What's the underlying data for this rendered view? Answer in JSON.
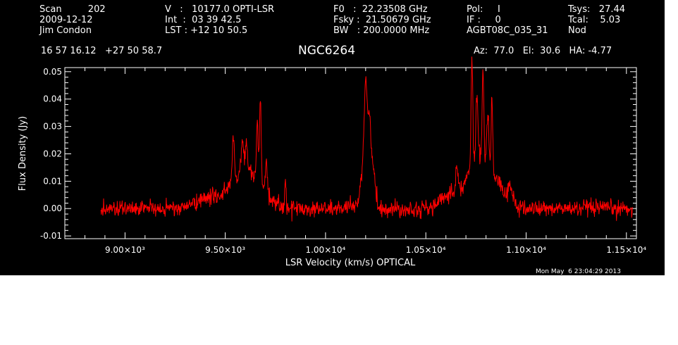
{
  "header": {
    "col1": [
      "Scan         202",
      "2009-12-12",
      "Jim Condon"
    ],
    "col2": [
      "V   :   10177.0 OPTI-LSR",
      "Int  :  03 39 42.5",
      "LST : +12 10 50.5"
    ],
    "col3": [
      "F0   :  22.23508 GHz",
      "Fsky :  21.50679 GHz",
      "BW   : 200.0000 MHz"
    ],
    "col4": [
      "Pol:     I",
      "IF :     0",
      "AGBT08C_035_31"
    ],
    "col5": [
      "Tsys:   27.44",
      "Tcal:    5.03",
      "Nod"
    ],
    "coords": "16 57 16.12   +27 50 58.7",
    "azel": "Az:  77.0   El:  30.6   HA: -4.77"
  },
  "timestamp": "Mon May  6 23:04:29 2013",
  "colors": {
    "background": "#000000",
    "axes": "#ffffff",
    "trace": "#ff0000"
  },
  "chart_data": {
    "type": "line",
    "title": "NGC6264",
    "xlabel": "LSR Velocity (km/s) OPTICAL",
    "ylabel": "Flux Density (Jy)",
    "xlim": [
      8700,
      11550
    ],
    "ylim": [
      -0.011,
      0.0515
    ],
    "x_ticks": [
      9000,
      9500,
      10000,
      10500,
      11000,
      11500
    ],
    "x_tick_labels": [
      "9.00×10³",
      "9.50×10³",
      "1.00×10⁴",
      "1.05×10⁴",
      "1.10×10⁴",
      "1.15×10⁴"
    ],
    "y_ticks": [
      -0.01,
      0.0,
      0.01,
      0.02,
      0.03,
      0.04,
      0.05
    ],
    "y_tick_labels": [
      "-0.01",
      "0.00",
      "0.01",
      "0.02",
      "0.03",
      "0.04",
      "0.05"
    ],
    "grid": false,
    "series": [
      {
        "x_range": [
          8880,
          11530
        ],
        "baseline": 0.0,
        "noise_rms": 0.0015,
        "features": [
          {
            "x": 9420,
            "peak": 0.0035,
            "width": 70
          },
          {
            "x": 9560,
            "peak": 0.006,
            "width": 60
          },
          {
            "x": 9625,
            "peak": 0.0065,
            "width": 50
          },
          {
            "x": 9650,
            "peak": 0.004,
            "width": 80
          },
          {
            "x": 9540,
            "peak": 0.0175,
            "width": 5
          },
          {
            "x": 9585,
            "peak": 0.0115,
            "width": 6
          },
          {
            "x": 9605,
            "peak": 0.01,
            "width": 5
          },
          {
            "x": 9660,
            "peak": 0.022,
            "width": 4
          },
          {
            "x": 9675,
            "peak": 0.0325,
            "width": 4
          },
          {
            "x": 9705,
            "peak": 0.01,
            "width": 5
          },
          {
            "x": 9800,
            "peak": 0.0095,
            "width": 3
          },
          {
            "x": 10195,
            "peak": 0.0185,
            "width": 18
          },
          {
            "x": 10200,
            "peak": 0.028,
            "width": 7
          },
          {
            "x": 10220,
            "peak": 0.0255,
            "width": 8
          },
          {
            "x": 10240,
            "peak": 0.0115,
            "width": 10
          },
          {
            "x": 10625,
            "peak": 0.0055,
            "width": 45
          },
          {
            "x": 10655,
            "peak": 0.011,
            "width": 5
          },
          {
            "x": 10720,
            "peak": 0.0075,
            "width": 40
          },
          {
            "x": 10730,
            "peak": 0.04,
            "width": 4
          },
          {
            "x": 10755,
            "peak": 0.022,
            "width": 5
          },
          {
            "x": 10775,
            "peak": 0.016,
            "width": 40
          },
          {
            "x": 10785,
            "peak": 0.0345,
            "width": 4
          },
          {
            "x": 10810,
            "peak": 0.022,
            "width": 6
          },
          {
            "x": 10830,
            "peak": 0.029,
            "width": 4
          },
          {
            "x": 10860,
            "peak": 0.0085,
            "width": 25
          },
          {
            "x": 10920,
            "peak": 0.008,
            "width": 15
          }
        ]
      }
    ]
  }
}
